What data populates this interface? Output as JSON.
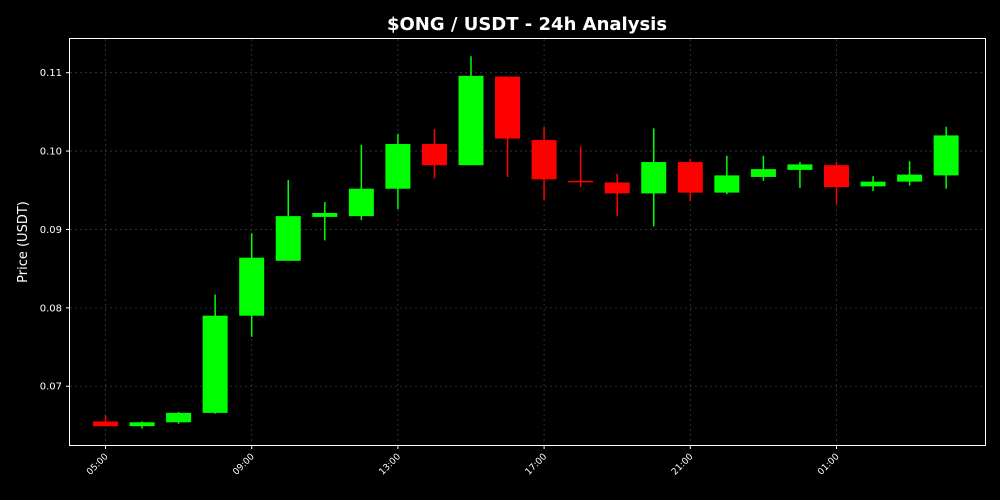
{
  "chart_data": {
    "type": "candlestick",
    "title": "$ONG / USDT - 24h Analysis",
    "ylabel": "Price (USDT)",
    "xlabel": "",
    "ylim": [
      0.0625,
      0.1143
    ],
    "y_ticks": [
      "0.07",
      "0.08",
      "0.09",
      "0.10",
      "0.11"
    ],
    "x_tick_labels": [
      "05:00",
      "09:00",
      "13:00",
      "17:00",
      "21:00",
      "01:00"
    ],
    "grid": true,
    "colors": {
      "up": "#00ff00",
      "down": "#ff0000",
      "background": "#000000",
      "text": "#ffffff"
    },
    "candles": [
      {
        "time": "05:00",
        "open": 0.0655,
        "high": 0.0663,
        "low": 0.065,
        "close": 0.0649
      },
      {
        "time": "06:00",
        "open": 0.0649,
        "high": 0.0655,
        "low": 0.0646,
        "close": 0.0654
      },
      {
        "time": "07:00",
        "open": 0.0654,
        "high": 0.0667,
        "low": 0.0652,
        "close": 0.0666
      },
      {
        "time": "08:00",
        "open": 0.0666,
        "high": 0.0817,
        "low": 0.0665,
        "close": 0.079
      },
      {
        "time": "09:00",
        "open": 0.079,
        "high": 0.0895,
        "low": 0.0763,
        "close": 0.0864
      },
      {
        "time": "10:00",
        "open": 0.086,
        "high": 0.0963,
        "low": 0.086,
        "close": 0.0917
      },
      {
        "time": "11:00",
        "open": 0.0916,
        "high": 0.0935,
        "low": 0.0886,
        "close": 0.0921
      },
      {
        "time": "12:00",
        "open": 0.0917,
        "high": 0.1008,
        "low": 0.0912,
        "close": 0.0952
      },
      {
        "time": "13:00",
        "open": 0.0952,
        "high": 0.1022,
        "low": 0.0926,
        "close": 0.1009
      },
      {
        "time": "14:00",
        "open": 0.1009,
        "high": 0.1028,
        "low": 0.0965,
        "close": 0.0982
      },
      {
        "time": "15:00",
        "open": 0.0982,
        "high": 0.1121,
        "low": 0.0982,
        "close": 0.1096
      },
      {
        "time": "16:00",
        "open": 0.1095,
        "high": 0.1095,
        "low": 0.0967,
        "close": 0.1016
      },
      {
        "time": "17:00",
        "open": 0.1014,
        "high": 0.1031,
        "low": 0.0937,
        "close": 0.0964
      },
      {
        "time": "18:00",
        "open": 0.0962,
        "high": 0.1006,
        "low": 0.0954,
        "close": 0.0961
      },
      {
        "time": "19:00",
        "open": 0.096,
        "high": 0.0971,
        "low": 0.0917,
        "close": 0.0946
      },
      {
        "time": "20:00",
        "open": 0.0946,
        "high": 0.1029,
        "low": 0.0904,
        "close": 0.0986
      },
      {
        "time": "21:00",
        "open": 0.0986,
        "high": 0.099,
        "low": 0.0936,
        "close": 0.0947
      },
      {
        "time": "22:00",
        "open": 0.0947,
        "high": 0.0994,
        "low": 0.0945,
        "close": 0.0969
      },
      {
        "time": "23:00",
        "open": 0.0967,
        "high": 0.0994,
        "low": 0.0962,
        "close": 0.0977
      },
      {
        "time": "00:00",
        "open": 0.0976,
        "high": 0.0986,
        "low": 0.0953,
        "close": 0.0983
      },
      {
        "time": "01:00",
        "open": 0.0982,
        "high": 0.0986,
        "low": 0.0932,
        "close": 0.0954
      },
      {
        "time": "02:00",
        "open": 0.0955,
        "high": 0.0968,
        "low": 0.0949,
        "close": 0.0961
      },
      {
        "time": "03:00",
        "open": 0.0961,
        "high": 0.0987,
        "low": 0.0956,
        "close": 0.097
      },
      {
        "time": "04:00",
        "open": 0.0969,
        "high": 0.1031,
        "low": 0.0952,
        "close": 0.102
      }
    ]
  }
}
